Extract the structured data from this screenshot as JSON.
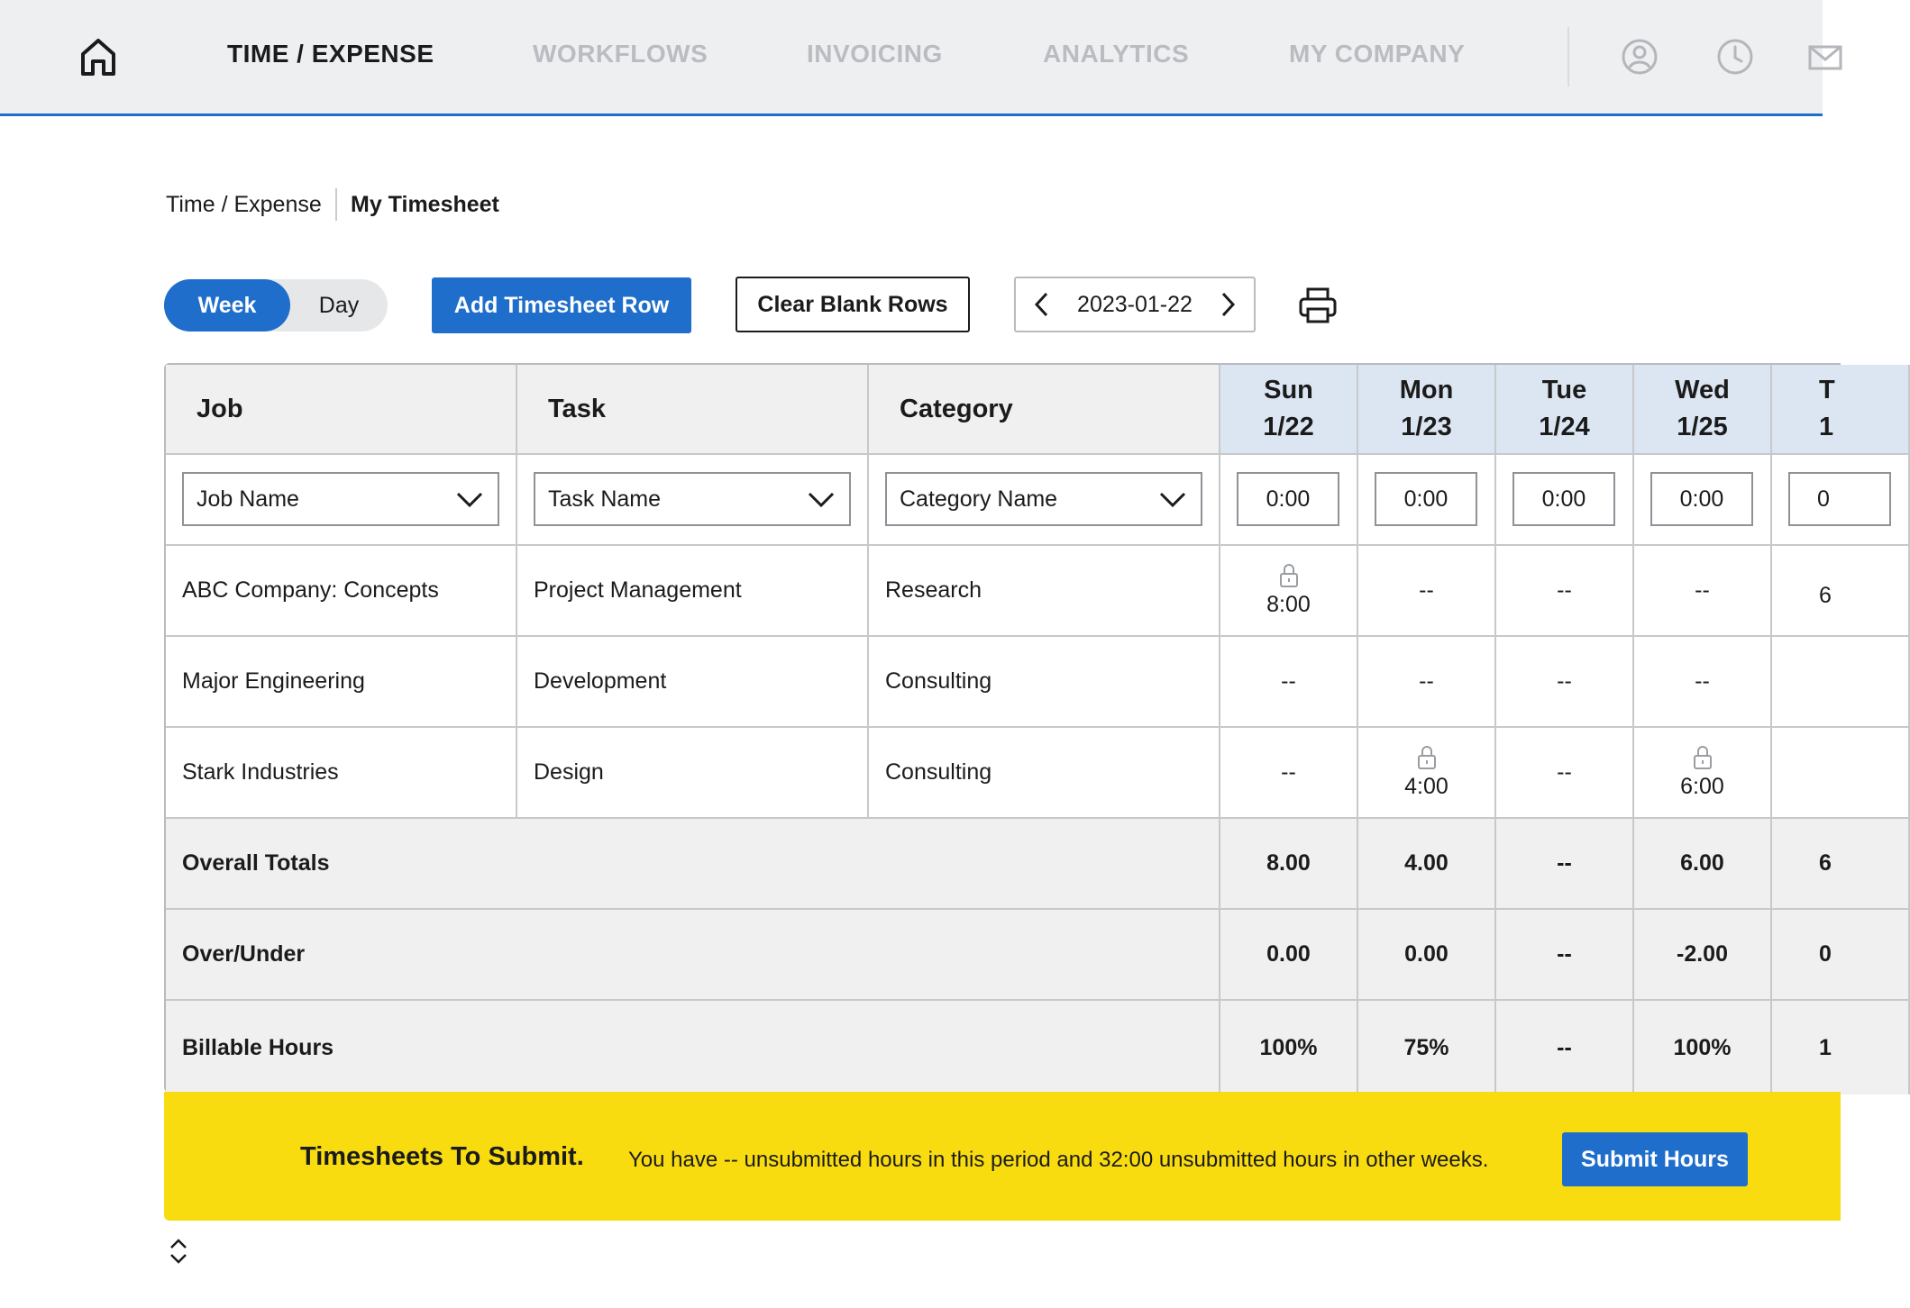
{
  "nav": {
    "items": [
      {
        "label": "TIME / EXPENSE",
        "active": true
      },
      {
        "label": "WORKFLOWS",
        "active": false
      },
      {
        "label": "INVOICING",
        "active": false
      },
      {
        "label": "ANALYTICS",
        "active": false
      },
      {
        "label": "MY COMPANY",
        "active": false
      }
    ],
    "icons": [
      "home-icon",
      "user-icon",
      "clock-icon",
      "mail-icon"
    ]
  },
  "breadcrumb": {
    "parent": "Time / Expense",
    "current": "My Timesheet"
  },
  "toolbar": {
    "view_week": "Week",
    "view_day": "Day",
    "selected_view": "Week",
    "add_row": "Add Timesheet Row",
    "clear_rows": "Clear Blank Rows",
    "date": "2023-01-22"
  },
  "table": {
    "headers": {
      "job": "Job",
      "task": "Task",
      "category": "Category"
    },
    "days": [
      {
        "name": "Sun",
        "date": "1/22"
      },
      {
        "name": "Mon",
        "date": "1/23"
      },
      {
        "name": "Tue",
        "date": "1/24"
      },
      {
        "name": "Wed",
        "date": "1/25"
      },
      {
        "name": "T",
        "date": "1"
      }
    ],
    "input_row": {
      "job_placeholder": "Job Name",
      "task_placeholder": "Task Name",
      "category_placeholder": "Category Name",
      "times": [
        "0:00",
        "0:00",
        "0:00",
        "0:00",
        "0"
      ]
    },
    "rows": [
      {
        "job": "ABC Company: Concepts",
        "task": "Project Management",
        "category": "Research",
        "values": [
          "8:00",
          "--",
          "--",
          "--",
          "6"
        ],
        "locked": [
          true,
          false,
          false,
          false,
          false
        ]
      },
      {
        "job": "Major Engineering",
        "task": "Development",
        "category": "Consulting",
        "values": [
          "--",
          "--",
          "--",
          "--",
          ""
        ],
        "locked": [
          false,
          false,
          false,
          false,
          false
        ]
      },
      {
        "job": "Stark Industries",
        "task": "Design",
        "category": "Consulting",
        "values": [
          "--",
          "4:00",
          "--",
          "6:00",
          ""
        ],
        "locked": [
          false,
          true,
          false,
          true,
          false
        ]
      }
    ],
    "footer": [
      {
        "label": "Overall Totals",
        "values": [
          "8.00",
          "4.00",
          "--",
          "6.00",
          "6"
        ]
      },
      {
        "label": "Over/Under",
        "values": [
          "0.00",
          "0.00",
          "--",
          "-2.00",
          "0"
        ]
      },
      {
        "label": "Billable Hours",
        "values": [
          "100%",
          "75%",
          "--",
          "100%",
          "1"
        ]
      }
    ]
  },
  "banner": {
    "title": "Timesheets To Submit.",
    "message": "You have -- unsubmitted hours in this period and 32:00 unsubmitted hours in other weeks.",
    "submit": "Submit Hours"
  },
  "colors": {
    "accent": "#1f6ecb",
    "banner": "#f8dc10",
    "day_header": "#dce6f2"
  }
}
